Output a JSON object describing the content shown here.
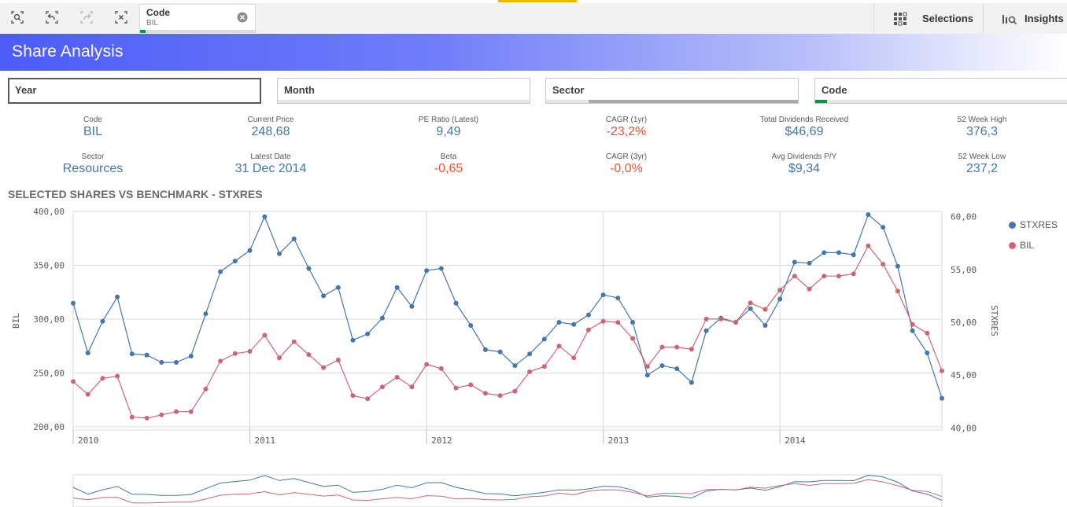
{
  "toolbar": {
    "buttons": [
      {
        "name": "smart-search-icon"
      },
      {
        "name": "step-back-icon"
      },
      {
        "name": "step-forward-icon"
      },
      {
        "name": "clear-selections-icon"
      }
    ],
    "selection_chip": {
      "label": "Code",
      "value": "BIL"
    },
    "selections_label": "Selections",
    "insights_label": "Insights",
    "accent_color": "#f0b400"
  },
  "header": {
    "title": "Share Analysis"
  },
  "filters": [
    {
      "label": "Year"
    },
    {
      "label": "Month"
    },
    {
      "label": "Sector"
    },
    {
      "label": "Code"
    }
  ],
  "kpis": [
    {
      "label": "Code",
      "value": "BIL"
    },
    {
      "label": "Current Price",
      "value": "248,68"
    },
    {
      "label": "PE Ratio (Latest)",
      "value": "9,49"
    },
    {
      "label": "CAGR (1yr)",
      "value": "-23,2%"
    },
    {
      "label": "Total Dividends Received",
      "value": "$46,69"
    },
    {
      "label": "52 Week High",
      "value": "376,3"
    },
    {
      "label": "Sector",
      "value": "Resources"
    },
    {
      "label": "Latest Date",
      "value": "31 Dec 2014"
    },
    {
      "label": "Beta",
      "value": "-0,65"
    },
    {
      "label": "CAGR (3yr)",
      "value": "-0,0%"
    },
    {
      "label": "Avg Dividends P/Y",
      "value": "$9,34"
    },
    {
      "label": "52 Week Low",
      "value": "237,2"
    }
  ],
  "chart_title": "SELECTED SHARES VS BENCHMARK - STXRES",
  "chart_data": {
    "type": "line",
    "title": "SELECTED SHARES VS BENCHMARK - STXRES",
    "ylabel": "BIL",
    "y2label": "STXRES",
    "ylim": [
      197,
      400
    ],
    "y2lim": [
      39.8,
      60.5
    ],
    "yticks": [
      "200,00",
      "250,00",
      "300,00",
      "350,00",
      "400,00"
    ],
    "y2ticks": [
      "40,00",
      "45,00",
      "50,00",
      "55,00",
      "60,00"
    ],
    "x_start": "2010-01",
    "x_end": "2014-12",
    "xticks": [
      "2010",
      "2011",
      "2012",
      "2013",
      "2014"
    ],
    "grid": true,
    "legend_position": "right",
    "series": [
      {
        "name": "STXRES",
        "axis": "right",
        "color": "#4477aa",
        "values": [
          51.8,
          47.1,
          50.1,
          52.4,
          47.0,
          46.9,
          46.2,
          46.2,
          46.8,
          50.8,
          54.8,
          55.8,
          56.8,
          60.0,
          56.5,
          57.9,
          55.1,
          52.5,
          53.3,
          48.3,
          48.9,
          50.4,
          53.3,
          51.5,
          54.9,
          55.1,
          51.8,
          49.7,
          47.4,
          47.2,
          45.9,
          47.0,
          48.4,
          50.0,
          49.8,
          50.7,
          52.6,
          52.3,
          50.0,
          45.0,
          45.9,
          45.6,
          44.3,
          49.2,
          50.4,
          50.0,
          51.3,
          49.7,
          52.2,
          55.7,
          55.6,
          56.6,
          56.6,
          56.4,
          60.2,
          59.0,
          55.3,
          49.2,
          47.1,
          42.8
        ]
      },
      {
        "name": "BIL",
        "axis": "left",
        "color": "#cc6677",
        "values": [
          242,
          230,
          245,
          247,
          209,
          208,
          211,
          214,
          214,
          235,
          261,
          268,
          270,
          285,
          264,
          279,
          267,
          255,
          262,
          229,
          226,
          237,
          246,
          237,
          258,
          254,
          236,
          239,
          231,
          229,
          233,
          251,
          256,
          275,
          264,
          290,
          298,
          297,
          282,
          256,
          274,
          274,
          272,
          300,
          300,
          297,
          315,
          309,
          327,
          340,
          328,
          340,
          340,
          342,
          368,
          351,
          326,
          295,
          287,
          252
        ]
      }
    ]
  }
}
